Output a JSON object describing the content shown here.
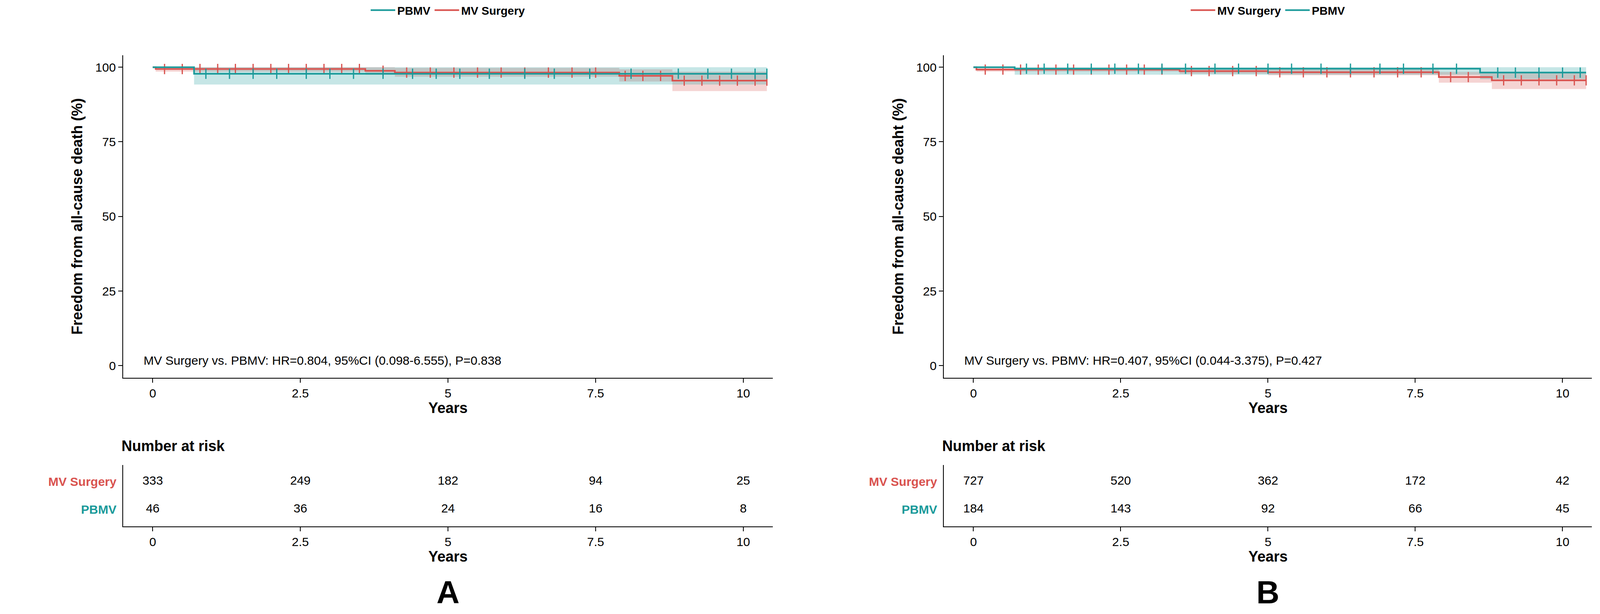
{
  "chart_data": [
    {
      "type": "line",
      "panel": "A",
      "line_style": "step",
      "marker": "vertical-line",
      "legend": "top",
      "grid": false,
      "xlabel": "Years",
      "ylabel": "Freedom from all-cause death (%)",
      "xlim": [
        -0.5,
        10.5
      ],
      "ylim": [
        -4,
        104
      ],
      "xticks": [
        0,
        2.5,
        5,
        7.5,
        10
      ],
      "yticks": [
        0,
        25,
        50,
        75,
        100
      ],
      "annotation": "MV Surgery vs. PBMV: HR=0.804, 95%CI (0.098-6.555), P=0.838",
      "risk_table_title": "Number at risk",
      "risk_times": [
        0,
        2.5,
        5,
        7.5,
        10
      ],
      "series": [
        {
          "name": "MV Surgery",
          "color": "#d9534f",
          "x": [
            0,
            0.05,
            3.6,
            4.1,
            7.9,
            8.8,
            10.4
          ],
          "values": [
            100,
            99.4,
            98.8,
            98.2,
            97.1,
            95.5,
            95.5
          ],
          "ci_lower": [
            100,
            98.5,
            97.5,
            96.8,
            95.2,
            92.0,
            92.0
          ],
          "ci_upper": [
            100,
            100,
            100,
            99.8,
            99.3,
            98.5,
            98.5
          ],
          "censor_x": [
            0.2,
            0.5,
            0.8,
            1.1,
            1.4,
            1.7,
            2.0,
            2.3,
            2.6,
            2.9,
            3.2,
            3.5,
            3.9,
            4.3,
            4.7,
            5.1,
            5.5,
            5.9,
            6.3,
            6.7,
            7.1,
            7.5,
            8.0,
            8.3,
            8.6,
            9.0,
            9.3,
            9.6,
            9.9,
            10.2,
            10.4
          ],
          "at_risk": [
            333,
            249,
            182,
            94,
            25
          ]
        },
        {
          "name": "PBMV",
          "color": "#1a9a9a",
          "x": [
            0,
            0.7,
            10.4
          ],
          "values": [
            100,
            97.8,
            97.8
          ],
          "ci_lower": [
            100,
            94.2,
            94.2
          ],
          "ci_upper": [
            100,
            100,
            100
          ],
          "censor_x": [
            0.9,
            1.3,
            1.7,
            2.1,
            2.6,
            3.0,
            3.4,
            3.9,
            4.4,
            4.8,
            5.2,
            5.7,
            6.3,
            6.8,
            7.4,
            8.1,
            8.9,
            9.4,
            9.8,
            10.2,
            10.4
          ],
          "at_risk": [
            46,
            36,
            24,
            16,
            8
          ]
        }
      ]
    },
    {
      "type": "line",
      "panel": "B",
      "line_style": "step",
      "marker": "vertical-line",
      "legend": "top",
      "grid": false,
      "xlabel": "Years",
      "ylabel": "Freedom from all-cause deaht (%)",
      "xlim": [
        -0.5,
        10.5
      ],
      "ylim": [
        -4,
        104
      ],
      "xticks": [
        0,
        2.5,
        5,
        7.5,
        10
      ],
      "yticks": [
        0,
        25,
        50,
        75,
        100
      ],
      "annotation": "MV Surgery vs. PBMV: HR=0.407, 95%CI (0.044-3.375), P=0.427",
      "risk_table_title": "Number at risk",
      "risk_times": [
        0,
        2.5,
        5,
        7.5,
        10
      ],
      "series": [
        {
          "name": "MV Surgery",
          "color": "#d9534f",
          "x": [
            0,
            0.05,
            3.5,
            5.0,
            7.9,
            8.8,
            10.4
          ],
          "values": [
            100,
            99.2,
            98.7,
            98.3,
            96.7,
            95.6,
            95.6
          ],
          "ci_lower": [
            100,
            98.5,
            97.8,
            97.3,
            94.8,
            92.7,
            92.7
          ],
          "ci_upper": [
            100,
            99.8,
            99.5,
            99.2,
            98.4,
            98.2,
            98.2
          ],
          "censor_x": [
            0.2,
            0.5,
            0.8,
            1.1,
            1.4,
            1.7,
            2.0,
            2.3,
            2.6,
            2.9,
            3.2,
            3.7,
            4.0,
            4.4,
            4.8,
            5.2,
            5.6,
            6.0,
            6.4,
            6.8,
            7.2,
            7.6,
            8.1,
            8.4,
            9.0,
            9.3,
            9.6,
            9.9,
            10.2,
            10.4
          ],
          "at_risk": [
            727,
            520,
            362,
            172,
            42
          ]
        },
        {
          "name": "PBMV",
          "color": "#1a9a9a",
          "x": [
            0,
            0.7,
            8.6,
            10.4
          ],
          "values": [
            100,
            99.5,
            98.2,
            98.2
          ],
          "ci_lower": [
            100,
            97.5,
            96.0,
            96.0
          ],
          "ci_upper": [
            100,
            100,
            100,
            100
          ],
          "censor_x": [
            0.9,
            1.2,
            1.6,
            2.0,
            2.4,
            2.8,
            3.2,
            3.6,
            4.1,
            4.5,
            5.0,
            5.4,
            5.9,
            6.4,
            6.9,
            7.3,
            7.8,
            8.2,
            8.9,
            9.2,
            9.6,
            10.0,
            10.3
          ],
          "at_risk": [
            184,
            143,
            92,
            66,
            45
          ]
        }
      ]
    }
  ]
}
